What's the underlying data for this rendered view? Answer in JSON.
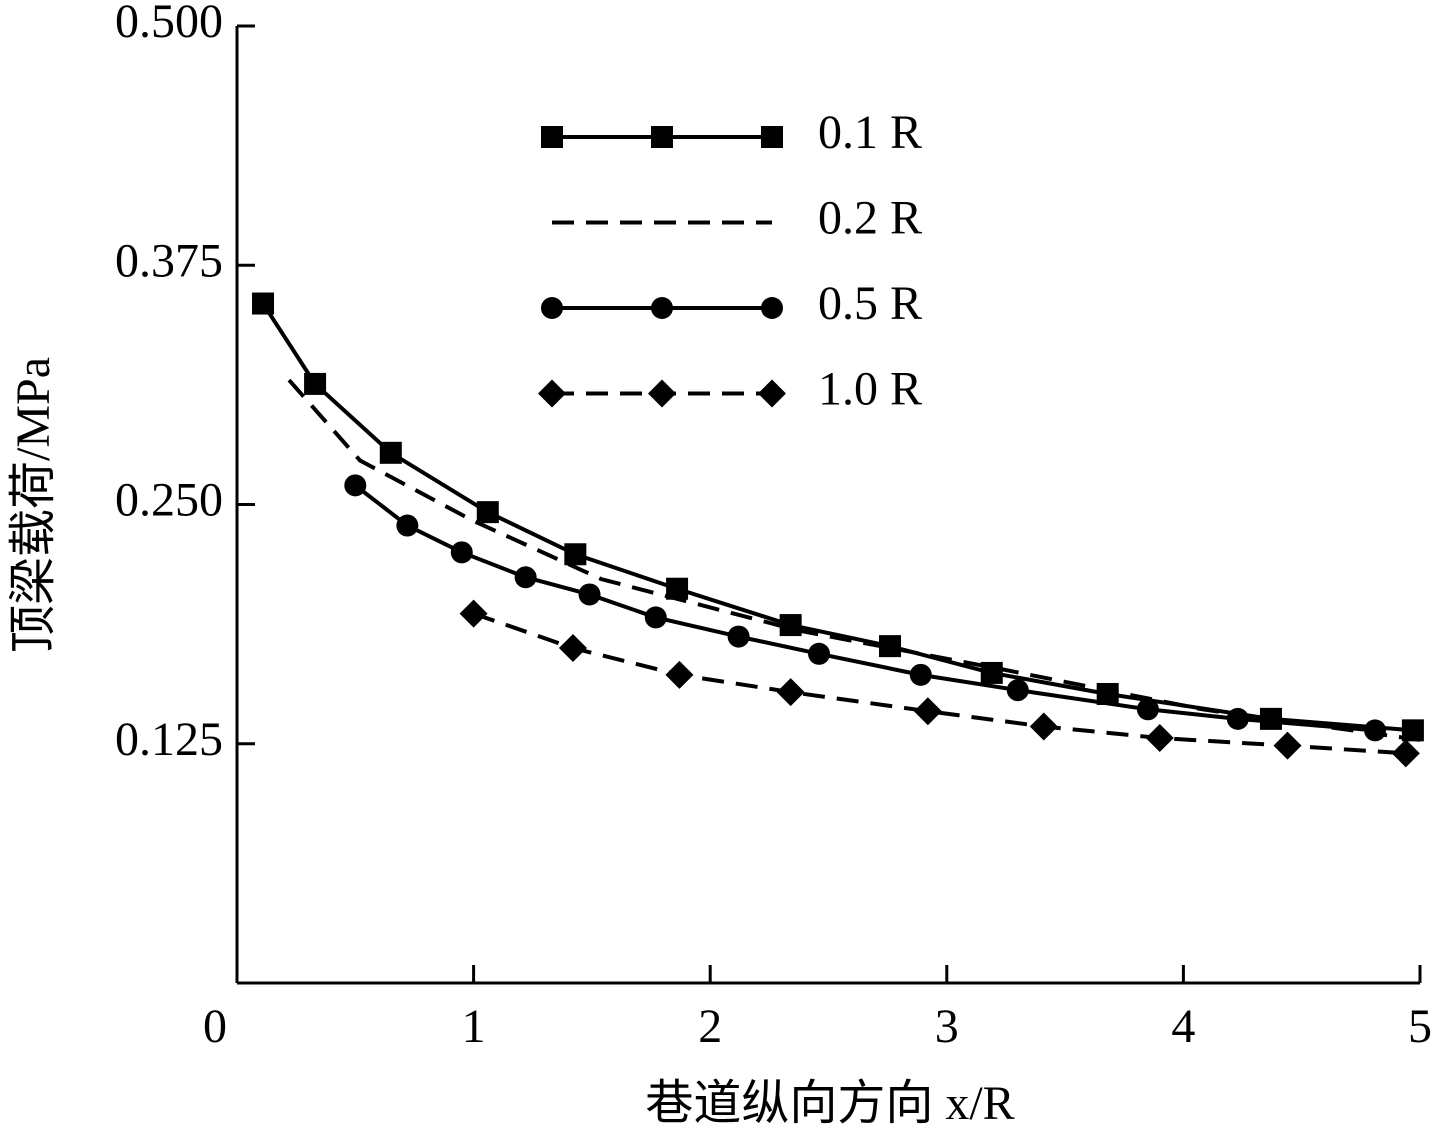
{
  "chart_data": {
    "type": "line",
    "xlabel": "巷道纵向方向 x/R",
    "ylabel": "顶梁载荷/MPa",
    "xlim": [
      0,
      5
    ],
    "ylim": [
      0,
      0.5
    ],
    "xticks": [
      0,
      1,
      2,
      3,
      4,
      5
    ],
    "yticks": [
      0.125,
      {
        "value": 0.25,
        "label": "0.250"
      },
      0.375,
      {
        "value": 0.5,
        "label": "0.500"
      }
    ],
    "grid": false,
    "legend": "top",
    "series": [
      {
        "name": "0.1 R",
        "color": "#000000",
        "marker": "square",
        "linestyle": "solid",
        "x": [
          0.11,
          0.33,
          0.65,
          1.06,
          1.43,
          1.86,
          2.34,
          2.76,
          3.19,
          3.68,
          4.37,
          4.97
        ],
        "values": [
          0.355,
          0.313,
          0.277,
          0.246,
          0.224,
          0.206,
          0.187,
          0.176,
          0.162,
          0.151,
          0.138,
          0.132
        ]
      },
      {
        "name": "0.2 R",
        "color": "#000000",
        "marker": "none",
        "linestyle": "dashed",
        "x": [
          0.22,
          0.52,
          0.99,
          1.54,
          2.38,
          3.23,
          4.08,
          5.0
        ],
        "values": [
          0.315,
          0.273,
          0.242,
          0.211,
          0.184,
          0.164,
          0.143,
          0.127
        ]
      },
      {
        "name": "0.5 R",
        "color": "#000000",
        "marker": "circle",
        "linestyle": "solid",
        "x": [
          0.5,
          0.72,
          0.95,
          1.22,
          1.49,
          1.77,
          2.12,
          2.46,
          2.89,
          3.3,
          3.85,
          4.23,
          4.81
        ],
        "values": [
          0.26,
          0.239,
          0.225,
          0.212,
          0.203,
          0.191,
          0.181,
          0.172,
          0.161,
          0.153,
          0.143,
          0.138,
          0.132
        ]
      },
      {
        "name": "1.0 R",
        "color": "#000000",
        "marker": "diamond",
        "linestyle": "dashed",
        "x": [
          1.0,
          1.42,
          1.87,
          2.34,
          2.92,
          3.41,
          3.9,
          4.44,
          4.94
        ],
        "values": [
          0.193,
          0.175,
          0.161,
          0.152,
          0.142,
          0.134,
          0.128,
          0.124,
          0.12
        ]
      }
    ]
  }
}
